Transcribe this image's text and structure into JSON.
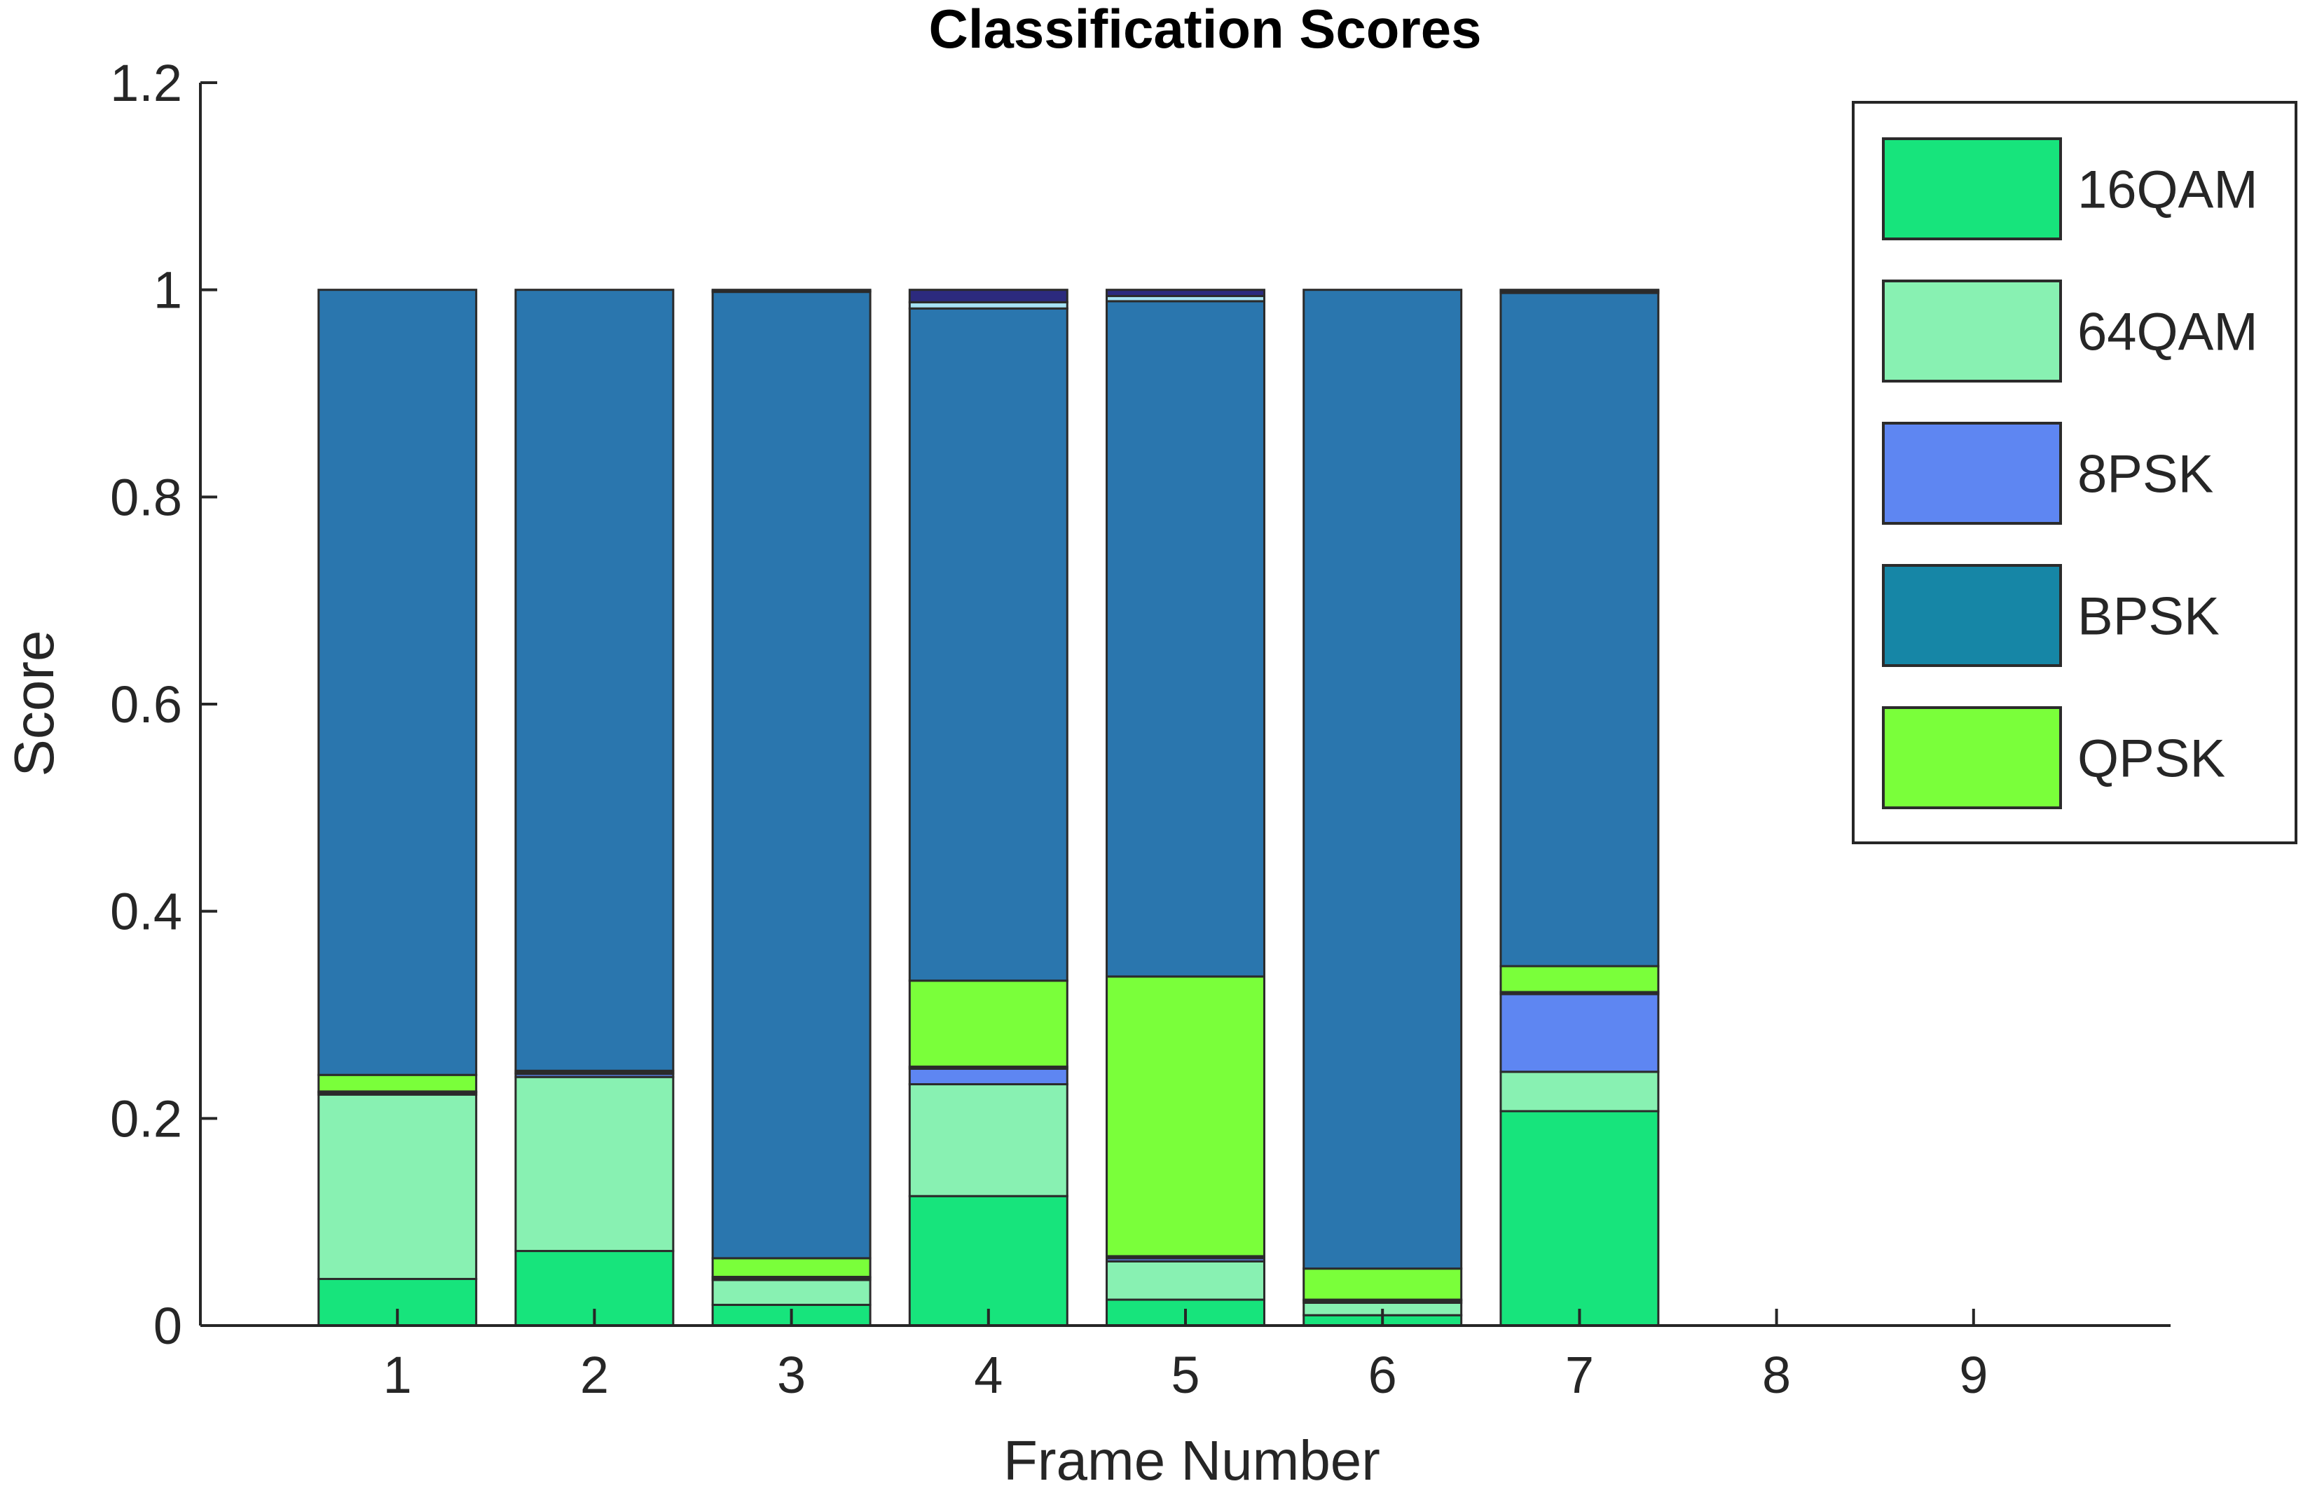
{
  "chart_data": {
    "type": "bar",
    "stacked": true,
    "title": "Classification Scores",
    "xlabel": "Frame Number",
    "ylabel": "Score",
    "ylim": [
      0,
      1.2
    ],
    "xlim": [
      0,
      10
    ],
    "x_ticks": [
      "1",
      "2",
      "3",
      "4",
      "5",
      "6",
      "7",
      "8",
      "9"
    ],
    "y_ticks": [
      "0",
      "0.2",
      "0.4",
      "0.6",
      "0.8",
      "1",
      "1.2"
    ],
    "y_tick_values": [
      0,
      0.2,
      0.4,
      0.6,
      0.8,
      1.0,
      1.2
    ],
    "categories": [
      1,
      2,
      3,
      4,
      5,
      6,
      7,
      8,
      9
    ],
    "legend_position": "top-right",
    "grid": false,
    "series": [
      {
        "name": "16QAM",
        "color": "#17e47c",
        "values": [
          0.045,
          0.072,
          0.02,
          0.125,
          0.025,
          0.01,
          0.207,
          0,
          0
        ]
      },
      {
        "name": "64QAM",
        "color": "#88f1b2",
        "values": [
          0.178,
          0.168,
          0.024,
          0.108,
          0.037,
          0.012,
          0.038,
          0,
          0
        ]
      },
      {
        "name": "8PSK",
        "color": "#5e86f2",
        "values": [
          0.002,
          0.003,
          0.002,
          0.015,
          0.003,
          0.002,
          0.075,
          0,
          0
        ]
      },
      {
        "name": "BPSK",
        "color": "#1686a6",
        "values": [
          0.001,
          0.001,
          0.001,
          0.002,
          0.002,
          0.001,
          0.002,
          0,
          0
        ]
      },
      {
        "name": "QPSK",
        "color": "#7aff3a",
        "values": [
          0.016,
          0.002,
          0.018,
          0.083,
          0.27,
          0.03,
          0.025,
          0,
          0
        ]
      }
    ],
    "unlisted_segments": [
      {
        "color": "#2a76ae",
        "values": [
          0.758,
          0.754,
          0.933,
          0.649,
          0.652,
          0.945,
          0.65,
          0,
          0
        ]
      },
      {
        "color": "#a6e2f4",
        "values": [
          0.0,
          0.0,
          0.001,
          0.006,
          0.005,
          0.0,
          0.002,
          0,
          0
        ]
      },
      {
        "color": "#2c2a7e",
        "values": [
          0.0,
          0.0,
          0.001,
          0.012,
          0.006,
          0.0,
          0.001,
          0,
          0
        ]
      }
    ]
  }
}
